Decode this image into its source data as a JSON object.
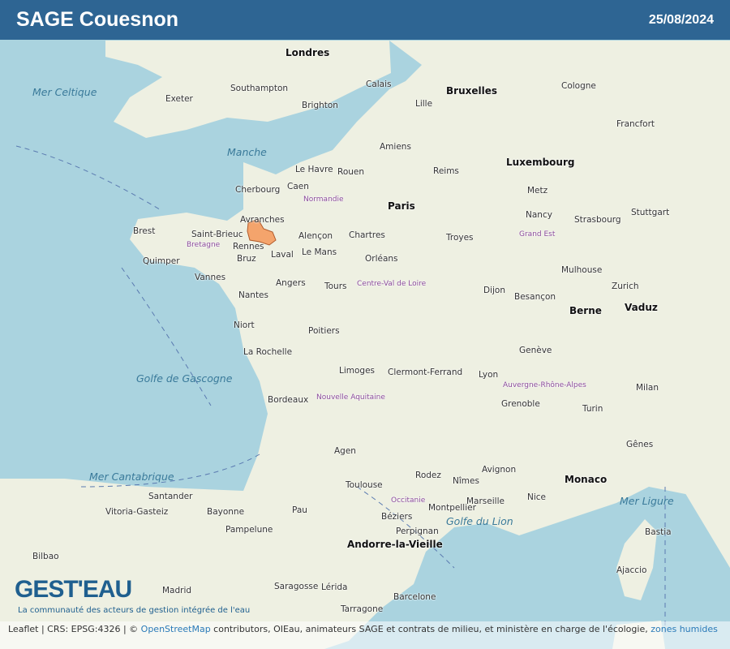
{
  "header": {
    "title": "SAGE Couesnon",
    "date": "25/08/2024"
  },
  "map": {
    "highlight_color": "#f4a46c",
    "highlight_name": "Couesnon",
    "land_color": "#f2efe9",
    "sea_color": "#aad3df",
    "labels": [
      "Londres",
      "Paris",
      "Bruxelles",
      "Luxembourg",
      "Berne",
      "Monaco",
      "Andorre-la-Vieille",
      "Vaduz",
      "Brighton",
      "Southampton",
      "Exeter",
      "Calais",
      "Lille",
      "Amiens",
      "Rouen",
      "Caen",
      "Le Havre",
      "Cherbourg",
      "Avranches",
      "Rennes",
      "Bruz",
      "Saint-Brieuc",
      "Brest",
      "Quimper",
      "Vannes",
      "Laval",
      "Le Mans",
      "Alençon",
      "Angers",
      "Nantes",
      "Tours",
      "Orléans",
      "Chartres",
      "Poitiers",
      "La Rochelle",
      "Limoges",
      "Bordeaux",
      "Toulouse",
      "Montpellier",
      "Marseille",
      "Nice",
      "Lyon",
      "Grenoble",
      "Dijon",
      "Besançon",
      "Strasbourg",
      "Reims",
      "Metz",
      "Nancy",
      "Clermont-Ferrand",
      "Perpignan",
      "Barcelone",
      "Bilbao",
      "Saragosse",
      "Madrid",
      "Genève",
      "Zurich",
      "Turin",
      "Milan",
      "Gênes",
      "Bastia",
      "Ajaccio",
      "Troyes",
      "Rodez",
      "Pau",
      "Bayonne",
      "Santander",
      "Vitoria-Gasteiz",
      "Pampelune",
      "Lérida",
      "Tarragone",
      "Cologne",
      "Francfort",
      "Stuttgart",
      "Mulhouse",
      "Avignon",
      "Nîmes",
      "Béziers",
      "Agen",
      "Niort"
    ],
    "seas": [
      "Mer Celtique",
      "Golfe de Gascogne",
      "Mer Cantabrique",
      "Golfe du Lion",
      "Mer Ligure",
      "Manche"
    ],
    "regions": [
      "Normandie",
      "Bretagne",
      "Centre-Val de Loire",
      "Nouvelle Aquitaine",
      "Occitanie",
      "Auvergne-Rhône-Alpes",
      "Grand Est"
    ]
  },
  "attribution": {
    "prefix": "Leaflet | CRS: EPSG:4326 | ©",
    "osm": "OpenStreetMap",
    "text": " contributors, OIEau, animateurs SAGE et contrats de milieu, et ministère en charge de l'écologie, ",
    "zones": "zones humides"
  },
  "logo": {
    "text": "GEST'EAU",
    "tagline": "La communauté des acteurs de gestion intégrée de l'eau"
  }
}
